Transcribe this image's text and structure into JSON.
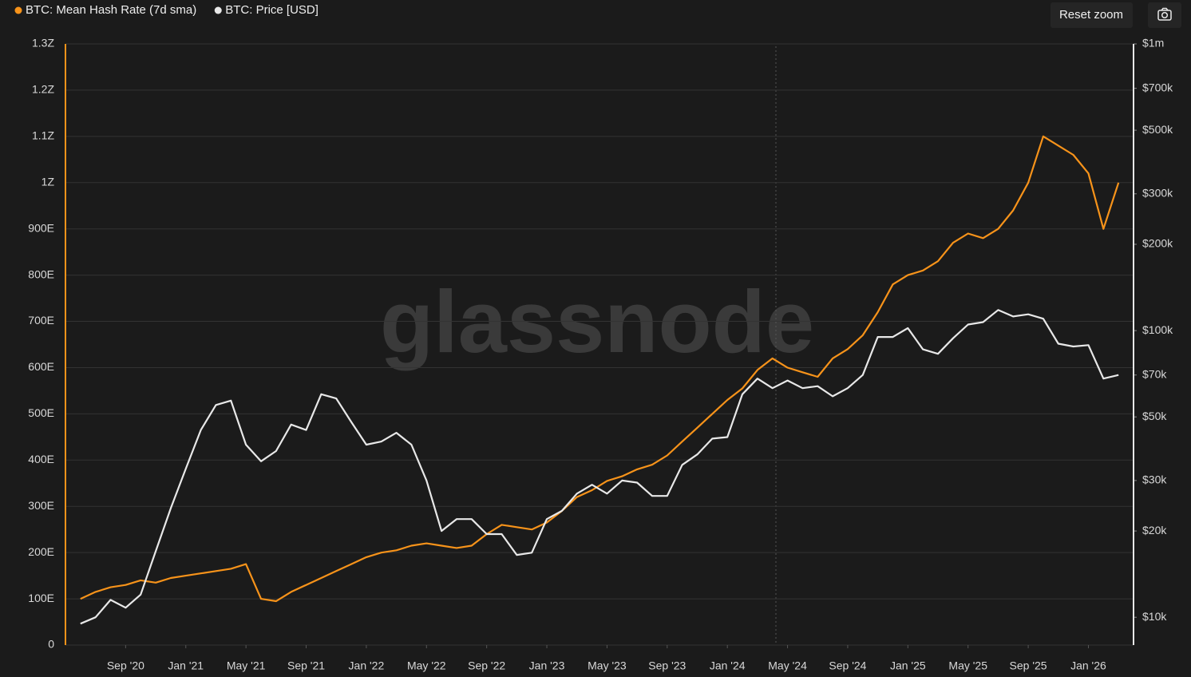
{
  "chart_data": {
    "type": "line",
    "watermark": "glassnode",
    "reset_zoom": "Reset zoom",
    "grid": true,
    "y2scale": "log",
    "x": [
      "2020-06",
      "2020-07",
      "2020-08",
      "2020-09",
      "2020-10",
      "2020-11",
      "2020-12",
      "2021-01",
      "2021-02",
      "2021-03",
      "2021-04",
      "2021-05",
      "2021-06",
      "2021-07",
      "2021-08",
      "2021-09",
      "2021-10",
      "2021-11",
      "2021-12",
      "2022-01",
      "2022-02",
      "2022-03",
      "2022-04",
      "2022-05",
      "2022-06",
      "2022-07",
      "2022-08",
      "2022-09",
      "2022-10",
      "2022-11",
      "2022-12",
      "2023-01",
      "2023-02",
      "2023-03",
      "2023-04",
      "2023-05",
      "2023-06",
      "2023-07",
      "2023-08",
      "2023-09",
      "2023-10",
      "2023-11",
      "2023-12",
      "2024-01",
      "2024-02",
      "2024-03",
      "2024-04",
      "2024-05",
      "2024-06",
      "2024-07",
      "2024-08",
      "2024-09",
      "2024-10",
      "2024-11",
      "2024-12",
      "2025-01",
      "2025-02",
      "2025-03",
      "2025-04",
      "2025-05",
      "2025-06",
      "2025-07",
      "2025-08",
      "2025-09",
      "2025-10",
      "2025-11",
      "2025-12",
      "2026-01",
      "2026-02",
      "2026-03"
    ],
    "xlim": [
      "2020-05",
      "2026-04"
    ],
    "xticks": [
      {
        "value": "2020-09",
        "label": "Sep '20"
      },
      {
        "value": "2021-01",
        "label": "Jan '21"
      },
      {
        "value": "2021-05",
        "label": "May '21"
      },
      {
        "value": "2021-09",
        "label": "Sep '21"
      },
      {
        "value": "2022-01",
        "label": "Jan '22"
      },
      {
        "value": "2022-05",
        "label": "May '22"
      },
      {
        "value": "2022-09",
        "label": "Sep '22"
      },
      {
        "value": "2023-01",
        "label": "Jan '23"
      },
      {
        "value": "2023-05",
        "label": "May '23"
      },
      {
        "value": "2023-09",
        "label": "Sep '23"
      },
      {
        "value": "2024-01",
        "label": "Jan '24"
      },
      {
        "value": "2024-05",
        "label": "May '24"
      },
      {
        "value": "2024-09",
        "label": "Sep '24"
      },
      {
        "value": "2025-01",
        "label": "Jan '25"
      },
      {
        "value": "2025-05",
        "label": "May '25"
      },
      {
        "value": "2025-09",
        "label": "Sep '25"
      },
      {
        "value": "2026-01",
        "label": "Jan '26"
      }
    ],
    "ylim": [
      0,
      1300
    ],
    "yticks": [
      0,
      {
        "value": 100,
        "label": "100E"
      },
      {
        "value": 200,
        "label": "200E"
      },
      {
        "value": 300,
        "label": "300E"
      },
      {
        "value": 400,
        "label": "400E"
      },
      {
        "value": 500,
        "label": "500E"
      },
      {
        "value": 600,
        "label": "600E"
      },
      {
        "value": 700,
        "label": "700E"
      },
      {
        "value": 800,
        "label": "800E"
      },
      {
        "value": 900,
        "label": "900E"
      },
      {
        "value": 1000,
        "label": "1Z"
      },
      {
        "value": 1100,
        "label": "1.1Z"
      },
      {
        "value": 1200,
        "label": "1.2Z"
      },
      {
        "value": 1300,
        "label": "1.3Z"
      }
    ],
    "y2lim": [
      8000,
      1000000
    ],
    "y2ticks": [
      {
        "value": 10000,
        "label": "$10k"
      },
      {
        "value": 20000,
        "label": "$20k"
      },
      {
        "value": 30000,
        "label": "$30k"
      },
      {
        "value": 50000,
        "label": "$50k"
      },
      {
        "value": 70000,
        "label": "$70k"
      },
      {
        "value": 100000,
        "label": "$100k"
      },
      {
        "value": 200000,
        "label": "$200k"
      },
      {
        "value": 300000,
        "label": "$300k"
      },
      {
        "value": 500000,
        "label": "$500k"
      },
      {
        "value": 700000,
        "label": "$700k"
      },
      {
        "value": 1000000,
        "label": "$1m"
      }
    ],
    "series": [
      {
        "name": "BTC: Mean Hash Rate (7d sma)",
        "color": "#f7931a",
        "values": [
          100,
          115,
          125,
          130,
          140,
          135,
          145,
          150,
          155,
          160,
          165,
          175,
          100,
          95,
          115,
          130,
          145,
          160,
          175,
          190,
          200,
          205,
          215,
          220,
          215,
          210,
          215,
          240,
          260,
          255,
          250,
          265,
          290,
          320,
          335,
          355,
          365,
          380,
          390,
          410,
          440,
          470,
          500,
          530,
          555,
          595,
          620,
          600,
          590,
          580,
          620,
          640,
          670,
          720,
          780,
          800,
          810,
          830,
          870,
          890,
          880,
          900,
          940,
          1000,
          1100,
          1080,
          1060,
          1020,
          900,
          1000
        ]
      },
      {
        "name": "BTC: Price [USD]",
        "color": "#e8e8e8",
        "axis": "y2",
        "values": [
          9500,
          10000,
          11500,
          10800,
          12000,
          17000,
          24000,
          33000,
          45000,
          55000,
          57000,
          40000,
          35000,
          38000,
          47000,
          45000,
          60000,
          58000,
          48000,
          40000,
          41000,
          44000,
          40000,
          30000,
          20000,
          22000,
          22000,
          19500,
          19500,
          16500,
          16800,
          22000,
          23500,
          27000,
          29000,
          27000,
          30000,
          29500,
          26500,
          26500,
          34000,
          37000,
          42000,
          42500,
          60000,
          68000,
          63000,
          67000,
          63000,
          64000,
          59000,
          63000,
          70000,
          95000,
          95000,
          102000,
          86000,
          83000,
          94000,
          105000,
          107000,
          118000,
          112000,
          114000,
          110000,
          90000,
          88000,
          89000,
          68000,
          70000
        ]
      }
    ]
  }
}
